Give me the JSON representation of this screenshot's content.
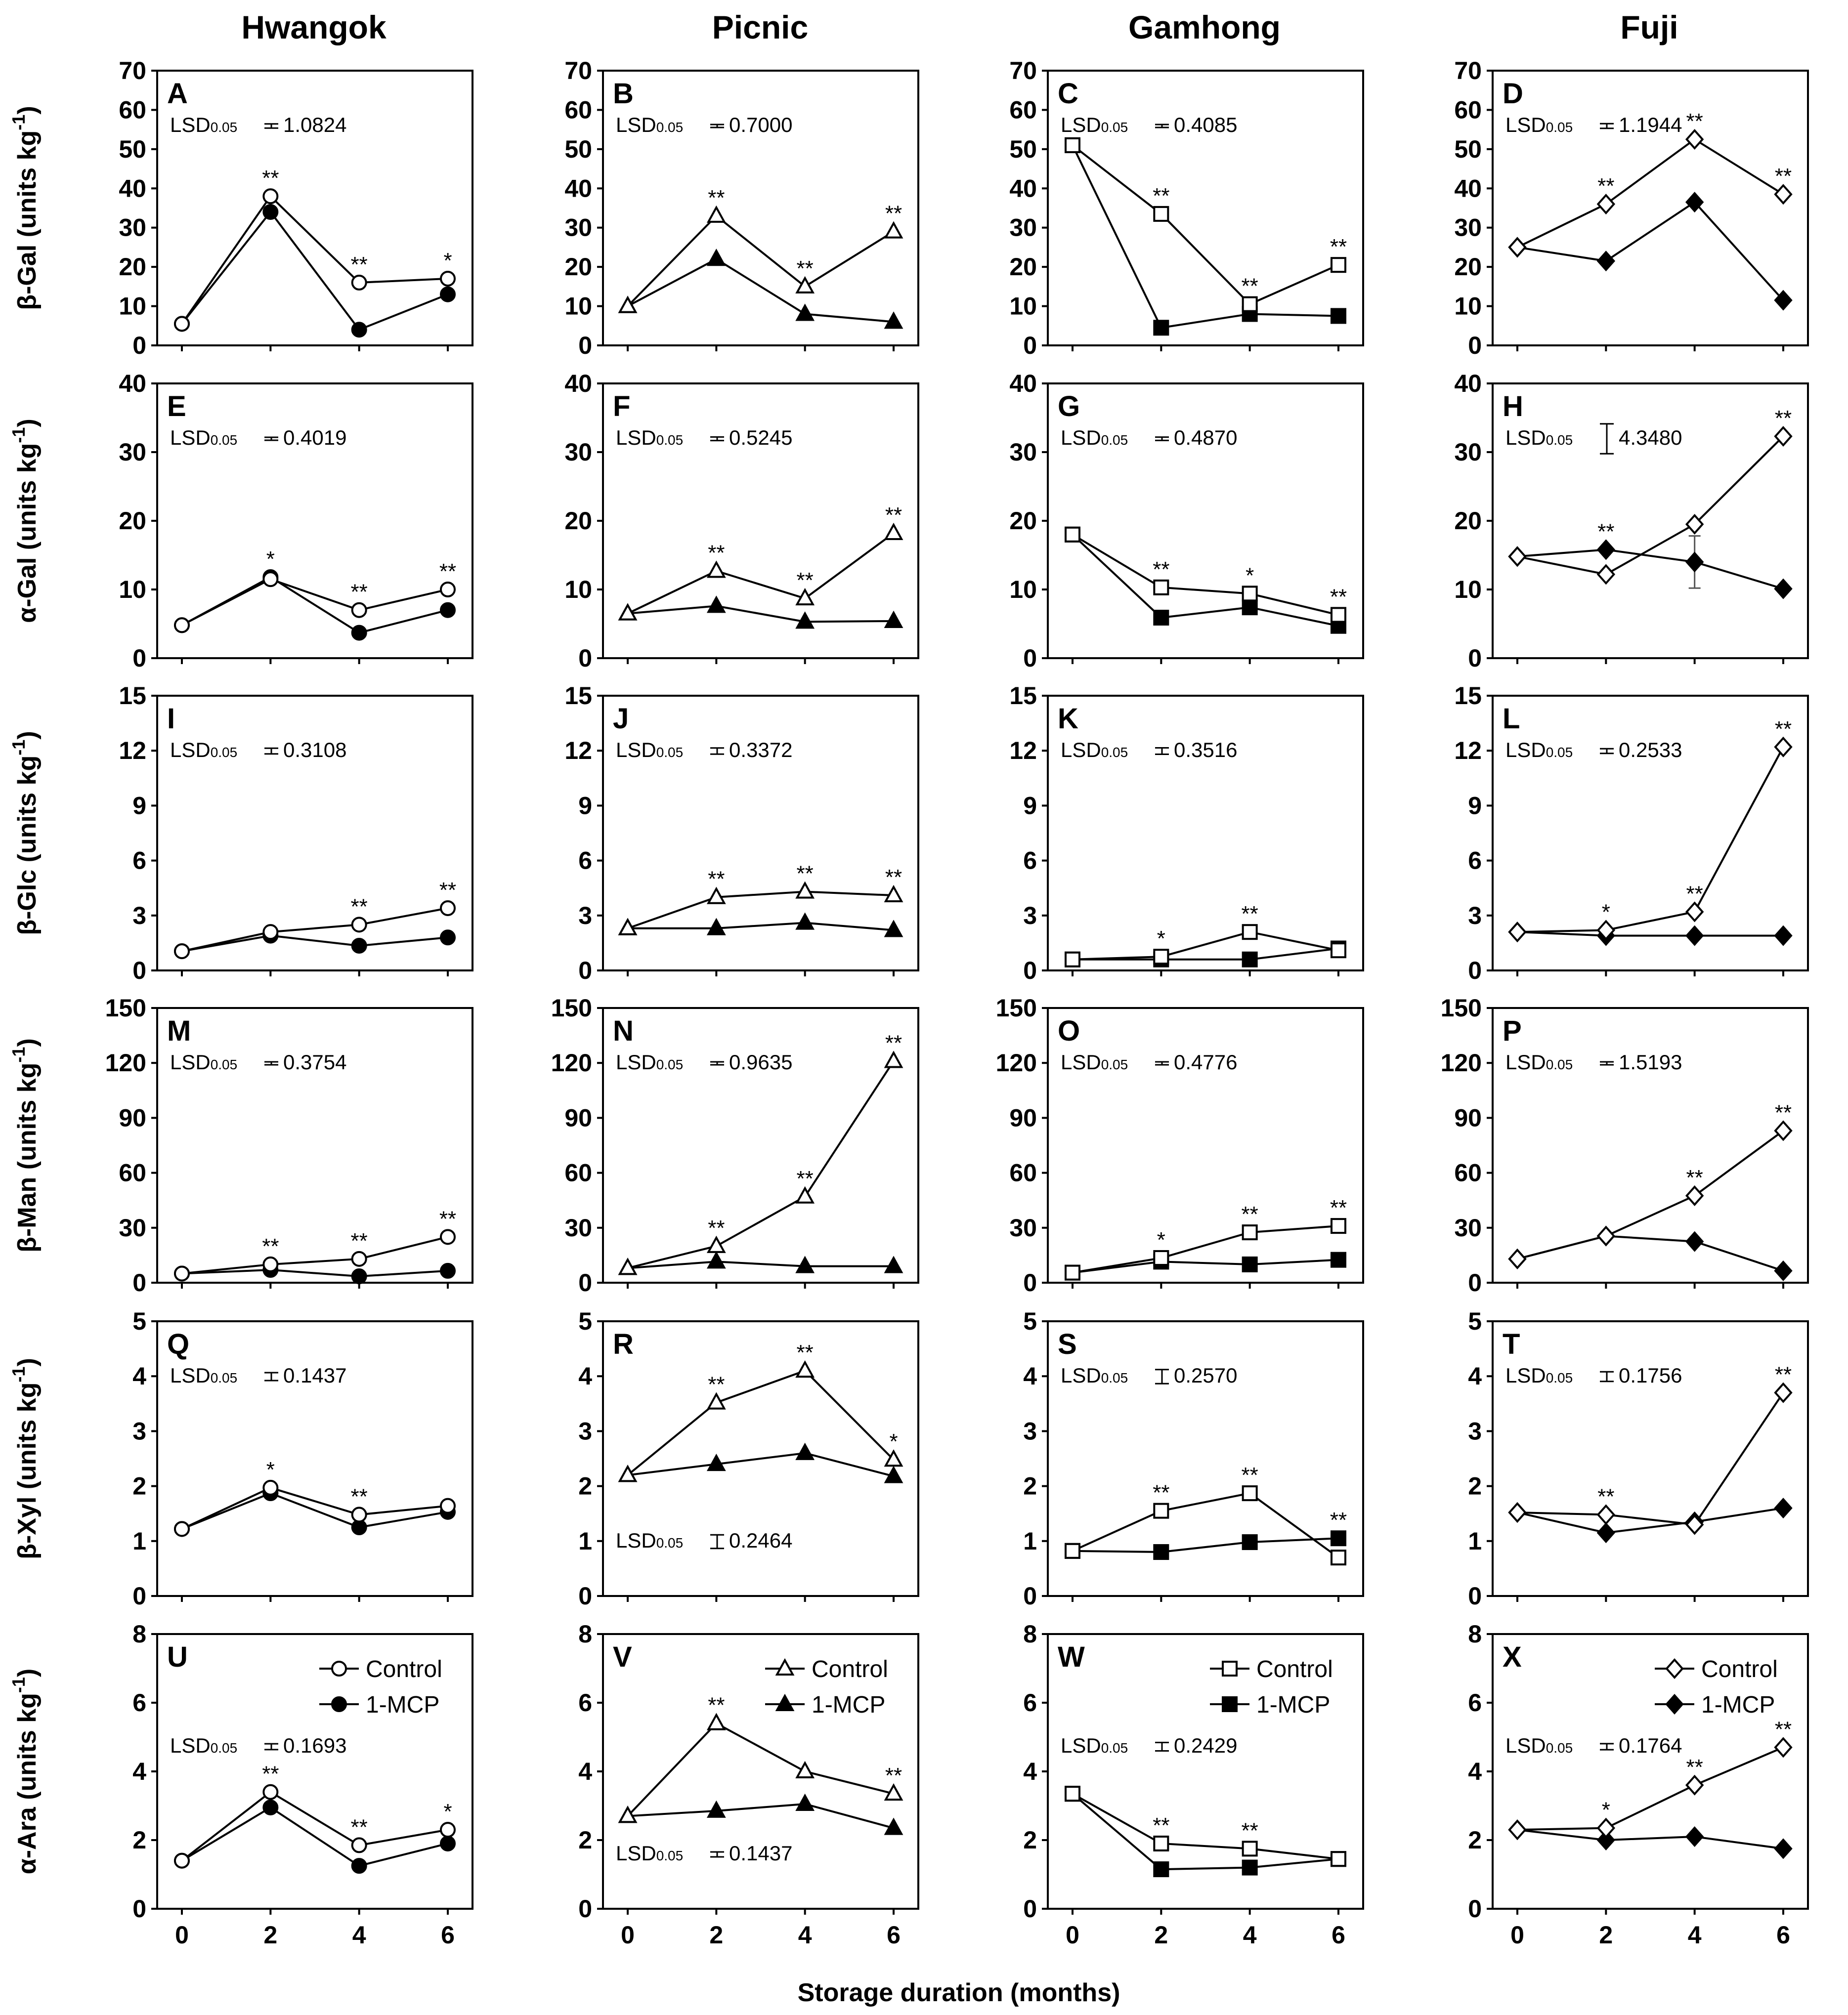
{
  "figure": {
    "columns": [
      "Hwangok",
      "Picnic",
      "Gamhong",
      "Fuji"
    ],
    "xlabel": "Storage duration (months)",
    "legend": {
      "control": "Control",
      "treatment": "1-MCP"
    },
    "lsd_prefix": "LSD",
    "lsd_subscript": "0.05"
  },
  "chart_data": {
    "type": "line",
    "x": [
      0,
      2,
      4,
      6
    ],
    "x_ticks": [
      "0",
      "2",
      "4",
      "6"
    ],
    "rows": [
      {
        "ylabel": "β-Gal (units kg-1)",
        "ylabel_main": "β-Gal (units kg",
        "ylabel_sup": "-1",
        "ylabel_tail": ")",
        "ylim": [
          0,
          70
        ],
        "yticks": [
          0,
          10,
          20,
          30,
          40,
          50,
          60,
          70
        ]
      },
      {
        "ylabel": "α-Gal (units kg-1)",
        "ylabel_main": "α-Gal (units kg",
        "ylabel_sup": "-1",
        "ylabel_tail": ")",
        "ylim": [
          0,
          40
        ],
        "yticks": [
          0,
          10,
          20,
          30,
          40
        ]
      },
      {
        "ylabel": "β-Glc (units kg-1)",
        "ylabel_main": "β-Glc (units kg",
        "ylabel_sup": "-1",
        "ylabel_tail": ")",
        "ylim": [
          0,
          15
        ],
        "yticks": [
          0,
          3,
          6,
          9,
          12,
          15
        ]
      },
      {
        "ylabel": "β-Man (units kg-1)",
        "ylabel_main": "β-Man (units kg",
        "ylabel_sup": "-1",
        "ylabel_tail": ")",
        "ylim": [
          0,
          150
        ],
        "yticks": [
          0,
          30,
          60,
          90,
          120,
          150
        ]
      },
      {
        "ylabel": "β-Xyl (units kg-1)",
        "ylabel_main": "β-Xyl (units kg",
        "ylabel_sup": "-1",
        "ylabel_tail": ")",
        "ylim": [
          0,
          5
        ],
        "yticks": [
          0,
          1,
          2,
          3,
          4,
          5
        ]
      },
      {
        "ylabel": "α-Ara (units kg-1)",
        "ylabel_main": "α-Ara (units kg",
        "ylabel_sup": "-1",
        "ylabel_tail": ")",
        "ylim": [
          0,
          8
        ],
        "yticks": [
          0,
          2,
          4,
          6,
          8
        ]
      }
    ],
    "panels": [
      {
        "id": "A",
        "row": 0,
        "col": 0,
        "marker": "circle",
        "lsd": "1.0824",
        "lsd_pos": "top",
        "control": [
          5.5,
          38,
          16,
          17
        ],
        "mcp": [
          5.5,
          34,
          4,
          13
        ],
        "sig": [
          "",
          "**",
          "**",
          "*"
        ]
      },
      {
        "id": "B",
        "row": 0,
        "col": 1,
        "marker": "triangle",
        "lsd": "0.7000",
        "lsd_pos": "top",
        "control": [
          10,
          33,
          15,
          29
        ],
        "mcp": [
          10,
          22,
          8,
          6
        ],
        "sig": [
          "",
          "**",
          "**",
          "**"
        ]
      },
      {
        "id": "C",
        "row": 0,
        "col": 2,
        "marker": "square",
        "lsd": "0.4085",
        "lsd_pos": "top",
        "control": [
          51,
          33.5,
          10.5,
          20.5
        ],
        "mcp": [
          51,
          4.5,
          8,
          7.5
        ],
        "sig": [
          "",
          "**",
          "**",
          "**"
        ]
      },
      {
        "id": "D",
        "row": 0,
        "col": 3,
        "marker": "diamond",
        "lsd": "1.1944",
        "lsd_pos": "top",
        "control": [
          25,
          36,
          52.5,
          38.5
        ],
        "mcp": [
          25,
          21.5,
          36.5,
          11.5
        ],
        "sig": [
          "",
          "**",
          "**",
          "**"
        ]
      },
      {
        "id": "E",
        "row": 1,
        "col": 0,
        "marker": "circle",
        "lsd": "0.4019",
        "lsd_pos": "top",
        "control": [
          4.8,
          11.5,
          7,
          10
        ],
        "mcp": [
          4.8,
          11.8,
          3.7,
          7
        ],
        "sig": [
          "",
          "*",
          "**",
          "**"
        ]
      },
      {
        "id": "F",
        "row": 1,
        "col": 1,
        "marker": "triangle",
        "lsd": "0.5245",
        "lsd_pos": "top",
        "control": [
          6.5,
          12.7,
          8.7,
          18.2
        ],
        "mcp": [
          6.5,
          7.6,
          5.3,
          5.4
        ],
        "sig": [
          "",
          "**",
          "**",
          "**"
        ]
      },
      {
        "id": "G",
        "row": 1,
        "col": 2,
        "marker": "square",
        "lsd": "0.4870",
        "lsd_pos": "top",
        "control": [
          18,
          10.3,
          9.4,
          6.3
        ],
        "mcp": [
          18,
          5.9,
          7.4,
          4.7
        ],
        "sig": [
          "",
          "**",
          "*",
          "**"
        ]
      },
      {
        "id": "H",
        "row": 1,
        "col": 3,
        "marker": "diamond",
        "lsd": "4.3480",
        "lsd_pos": "top",
        "control": [
          14.8,
          12.2,
          19.5,
          32.3
        ],
        "mcp": [
          14.8,
          15.8,
          14,
          10.1
        ],
        "mcp_err": [
          0,
          0,
          3.8,
          0
        ],
        "sig": [
          "",
          "**",
          "",
          "**"
        ]
      },
      {
        "id": "I",
        "row": 2,
        "col": 0,
        "marker": "circle",
        "lsd": "0.3108",
        "lsd_pos": "top",
        "control": [
          1.05,
          2.1,
          2.5,
          3.4
        ],
        "mcp": [
          1.05,
          1.9,
          1.35,
          1.8
        ],
        "sig": [
          "",
          "",
          "**",
          "**"
        ]
      },
      {
        "id": "J",
        "row": 2,
        "col": 1,
        "marker": "triangle",
        "lsd": "0.3372",
        "lsd_pos": "top",
        "control": [
          2.3,
          4.0,
          4.3,
          4.1
        ],
        "mcp": [
          2.3,
          2.3,
          2.6,
          2.2
        ],
        "sig": [
          "",
          "**",
          "**",
          "**"
        ]
      },
      {
        "id": "K",
        "row": 2,
        "col": 2,
        "marker": "square",
        "lsd": "0.3516",
        "lsd_pos": "top",
        "control": [
          0.6,
          0.75,
          2.1,
          1.1
        ],
        "mcp": [
          0.6,
          0.6,
          0.6,
          1.2
        ],
        "sig": [
          "",
          "*",
          "**",
          ""
        ]
      },
      {
        "id": "L",
        "row": 2,
        "col": 3,
        "marker": "diamond",
        "lsd": "0.2533",
        "lsd_pos": "top",
        "control": [
          2.1,
          2.2,
          3.2,
          12.2
        ],
        "mcp": [
          2.1,
          1.9,
          1.9,
          1.9
        ],
        "sig": [
          "",
          "*",
          "**",
          "**"
        ]
      },
      {
        "id": "M",
        "row": 3,
        "col": 0,
        "marker": "circle",
        "lsd": "0.3754",
        "lsd_pos": "top",
        "control": [
          5,
          10,
          13,
          25
        ],
        "mcp": [
          5,
          7,
          3.5,
          6.5
        ],
        "sig": [
          "",
          "**",
          "**",
          "**"
        ]
      },
      {
        "id": "N",
        "row": 3,
        "col": 1,
        "marker": "triangle",
        "lsd": "0.9635",
        "lsd_pos": "top",
        "control": [
          8,
          20,
          47,
          121
        ],
        "mcp": [
          8,
          11.5,
          9,
          9
        ],
        "sig": [
          "",
          "**",
          "**",
          "**"
        ]
      },
      {
        "id": "O",
        "row": 3,
        "col": 2,
        "marker": "square",
        "lsd": "0.4776",
        "lsd_pos": "top",
        "control": [
          5.5,
          13.5,
          27.5,
          31
        ],
        "mcp": [
          5.5,
          11.5,
          10,
          12.5
        ],
        "sig": [
          "",
          "*",
          "**",
          "**"
        ]
      },
      {
        "id": "P",
        "row": 3,
        "col": 3,
        "marker": "diamond",
        "lsd": "1.5193",
        "lsd_pos": "top",
        "control": [
          13,
          25.5,
          47.5,
          83
        ],
        "mcp": [
          13,
          25.5,
          22.5,
          6.5
        ],
        "sig": [
          "",
          "",
          "**",
          "**"
        ]
      },
      {
        "id": "Q",
        "row": 4,
        "col": 0,
        "marker": "circle",
        "lsd": "0.1437",
        "lsd_pos": "top",
        "control": [
          1.22,
          1.97,
          1.48,
          1.64
        ],
        "mcp": [
          1.22,
          1.87,
          1.25,
          1.53
        ],
        "sig": [
          "",
          "*",
          "**",
          ""
        ]
      },
      {
        "id": "R",
        "row": 4,
        "col": 1,
        "marker": "triangle",
        "lsd": "0.2464",
        "lsd_pos": "bottom",
        "control": [
          2.2,
          3.52,
          4.1,
          2.48
        ],
        "mcp": [
          2.2,
          2.4,
          2.6,
          2.18
        ],
        "sig": [
          "",
          "**",
          "**",
          "*"
        ]
      },
      {
        "id": "S",
        "row": 4,
        "col": 2,
        "marker": "square",
        "lsd": "0.2570",
        "lsd_pos": "top",
        "control": [
          0.82,
          1.55,
          1.87,
          0.7
        ],
        "mcp": [
          0.82,
          0.8,
          0.98,
          1.05
        ],
        "sig": [
          "",
          "**",
          "**",
          "**"
        ]
      },
      {
        "id": "T",
        "row": 4,
        "col": 3,
        "marker": "diamond",
        "lsd": "0.1756",
        "lsd_pos": "top",
        "control": [
          1.52,
          1.48,
          1.3,
          3.7
        ],
        "mcp": [
          1.52,
          1.15,
          1.35,
          1.6
        ],
        "sig": [
          "",
          "**",
          "",
          "**"
        ]
      },
      {
        "id": "U",
        "row": 5,
        "col": 0,
        "marker": "circle",
        "lsd": "0.1693",
        "lsd_pos": "top",
        "legend": true,
        "control": [
          1.4,
          3.4,
          1.85,
          2.3
        ],
        "mcp": [
          1.4,
          2.95,
          1.25,
          1.9
        ],
        "sig": [
          "",
          "**",
          "**",
          "*"
        ]
      },
      {
        "id": "V",
        "row": 5,
        "col": 1,
        "marker": "triangle",
        "lsd": "0.1437",
        "lsd_pos": "bottom",
        "legend": true,
        "control": [
          2.7,
          5.4,
          4.0,
          3.35
        ],
        "mcp": [
          2.7,
          2.85,
          3.05,
          2.35
        ],
        "sig": [
          "",
          "**",
          "",
          "**"
        ]
      },
      {
        "id": "W",
        "row": 5,
        "col": 2,
        "marker": "square",
        "lsd": "0.2429",
        "lsd_pos": "top",
        "legend": true,
        "control": [
          3.35,
          1.9,
          1.75,
          1.45
        ],
        "mcp": [
          3.35,
          1.15,
          1.2,
          1.45
        ],
        "sig": [
          "",
          "**",
          "**",
          ""
        ]
      },
      {
        "id": "X",
        "row": 5,
        "col": 3,
        "marker": "diamond",
        "lsd": "0.1764",
        "lsd_pos": "top",
        "legend": true,
        "control": [
          2.3,
          2.35,
          3.6,
          4.7
        ],
        "mcp": [
          2.3,
          2.0,
          2.1,
          1.75
        ],
        "sig": [
          "",
          "*",
          "**",
          "**"
        ]
      }
    ]
  }
}
